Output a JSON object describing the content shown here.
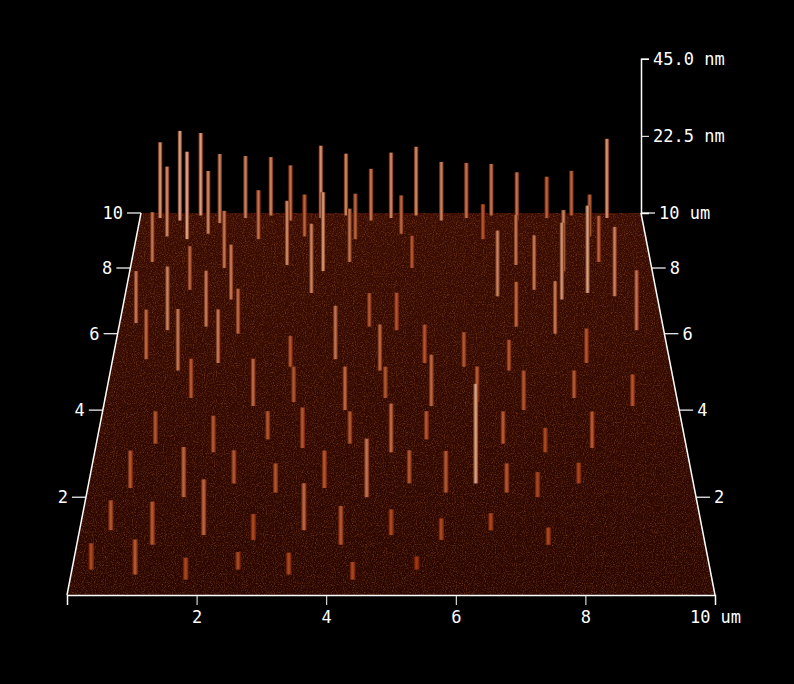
{
  "chart_data": {
    "type": "surface3d",
    "xlim": [
      0,
      10
    ],
    "xticks": [
      2,
      4,
      6,
      8,
      {
        "value": 10,
        "label": "10 um"
      }
    ],
    "ylim": [
      0,
      10
    ],
    "yticks": [
      2,
      4,
      6,
      8,
      10
    ],
    "y2lim": [
      0,
      10
    ],
    "y2ticks": [
      2,
      4,
      6,
      8,
      {
        "value": 10,
        "label": "10 um"
      }
    ],
    "zlim": [
      0,
      45
    ],
    "zticks": [
      {
        "value": 22.5,
        "label": "22.5 nm"
      },
      {
        "value": 45,
        "label": "45.0 nm"
      }
    ],
    "grid": false,
    "x": [
      0.4,
      0.8,
      1.2,
      1.6,
      2.1,
      2.6,
      3.0,
      3.6,
      4.1,
      4.6,
      5.0,
      5.5,
      6.0,
      6.5,
      7.0,
      7.5,
      8.1,
      8.6,
      9.3,
      0.6,
      1.0,
      1.4,
      2.4,
      3.3,
      4.3,
      5.2,
      6.8,
      8.9,
      0.4,
      1.8,
      3.0,
      3.7,
      4.2,
      5.4,
      7.4,
      8.3,
      9.0,
      1.2,
      2.0,
      3.5,
      7.0,
      7.7,
      8.2,
      8.7,
      9.2,
      0.3,
      0.9,
      1.6,
      2.2,
      4.6,
      5.1,
      7.3,
      8.0,
      9.5,
      0.6,
      1.2,
      1.9,
      3.2,
      4.0,
      4.8,
      5.6,
      6.3,
      7.1,
      8.5,
      1.5,
      2.6,
      3.3,
      4.2,
      4.9,
      5.7,
      6.5,
      7.3,
      8.2,
      9.2,
      1.0,
      2.0,
      2.9,
      3.5,
      4.3,
      5.0,
      5.6,
      6.9,
      7.6,
      8.4,
      0.7,
      1.6,
      2.4,
      3.1,
      3.9,
      4.6,
      5.3,
      5.9,
      6.4,
      6.9,
      7.4,
      8.1,
      0.5,
      1.2,
      2.0,
      2.8,
      3.6,
      4.2,
      5.0,
      5.8,
      6.6,
      7.5,
      0.3,
      1.0,
      1.8,
      2.6,
      3.4,
      4.4,
      5.4
    ],
    "y": [
      9.8,
      9.7,
      9.9,
      9.6,
      9.8,
      9.9,
      9.7,
      9.8,
      9.9,
      9.7,
      9.8,
      9.9,
      9.7,
      9.8,
      9.9,
      9.7,
      9.8,
      9.9,
      9.8,
      9.1,
      9.0,
      9.2,
      9.0,
      9.1,
      9.0,
      9.2,
      9.0,
      9.1,
      8.2,
      8.0,
      8.1,
      7.9,
      8.2,
      8.0,
      8.1,
      7.9,
      8.2,
      7.3,
      7.0,
      7.2,
      7.1,
      7.3,
      7.0,
      7.2,
      7.1,
      6.3,
      6.1,
      6.2,
      6.0,
      6.2,
      6.1,
      6.2,
      6.0,
      6.1,
      5.3,
      5.0,
      5.2,
      5.1,
      5.3,
      5.0,
      5.2,
      5.1,
      5.0,
      5.2,
      4.3,
      4.1,
      4.2,
      4.0,
      4.3,
      4.1,
      4.2,
      4.0,
      4.3,
      4.1,
      3.2,
      3.0,
      3.3,
      3.1,
      3.2,
      3.0,
      3.3,
      3.2,
      3.0,
      3.1,
      2.2,
      2.0,
      2.3,
      2.1,
      2.2,
      2.0,
      2.3,
      2.1,
      2.3,
      2.1,
      2.0,
      2.3,
      1.3,
      1.0,
      1.2,
      1.1,
      1.3,
      1.0,
      1.2,
      1.1,
      1.3,
      1.0,
      0.5,
      0.4,
      0.3,
      0.5,
      0.4,
      0.3,
      0.5
    ],
    "z": [
      22,
      26,
      24,
      20,
      18,
      17,
      16,
      21,
      18,
      15,
      19,
      20,
      17,
      16,
      15,
      14,
      12,
      13,
      23,
      20,
      25,
      18,
      14,
      12,
      13,
      11,
      10,
      12,
      14,
      16,
      18,
      22,
      15,
      9,
      14,
      17,
      13,
      12,
      15,
      19,
      18,
      15,
      21,
      24,
      19,
      14,
      17,
      15,
      12,
      9,
      10,
      12,
      14,
      16,
      13,
      16,
      14,
      8,
      14,
      12,
      10,
      9,
      8,
      9,
      10,
      12,
      9,
      11,
      8,
      13,
      9,
      10,
      7,
      8,
      8,
      9,
      7,
      10,
      8,
      12,
      7,
      8,
      6,
      9,
      9,
      12,
      8,
      7,
      9,
      14,
      8,
      10,
      24,
      7,
      6,
      5,
      7,
      10,
      13,
      6,
      11,
      9,
      6,
      5,
      4,
      4,
      6,
      8,
      5,
      4,
      5,
      4,
      3
    ]
  }
}
